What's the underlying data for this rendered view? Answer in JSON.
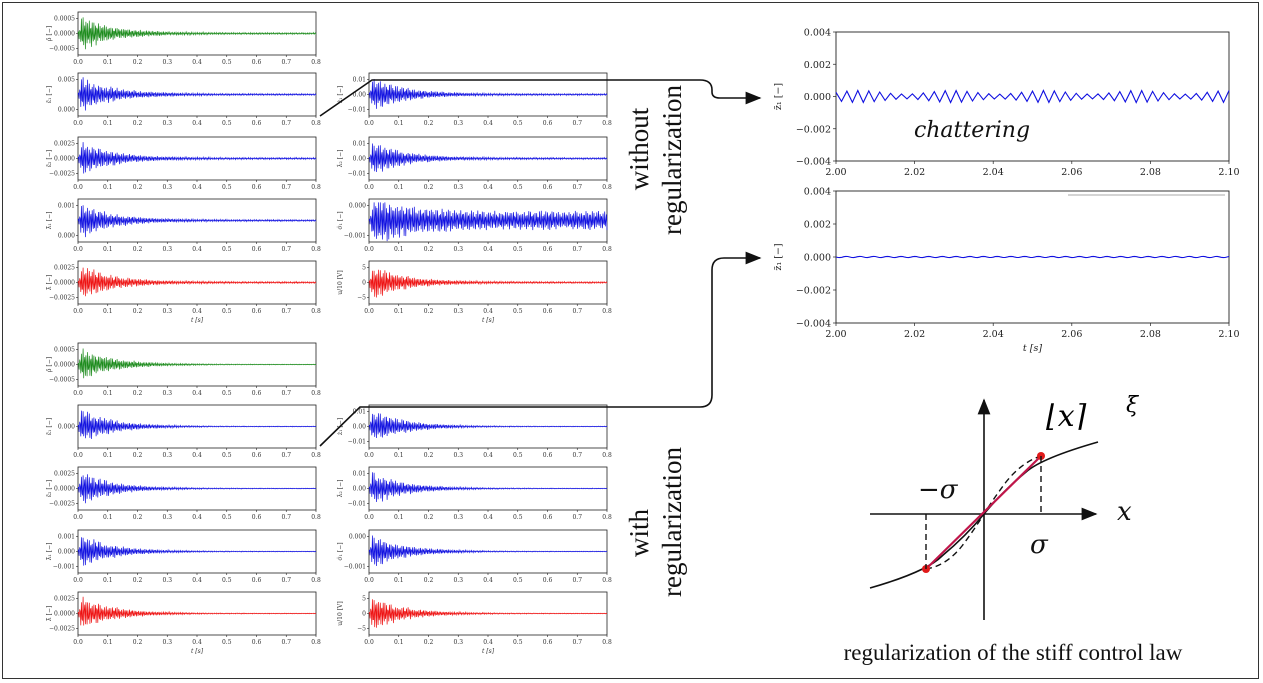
{
  "labels": {
    "without": "without",
    "without_reg": "regularization",
    "with": "with",
    "with_reg": "regularization",
    "chattering": "chattering",
    "caption": "regularization of the stiff control law",
    "x_label": "t [s]"
  },
  "function_plot": {
    "func_label": "⌊x⌉",
    "func_exp": "ξ",
    "axis_x": "x",
    "neg_sigma": "−σ",
    "pos_sigma": "σ"
  },
  "small_panels": {
    "x_ticks": [
      "0.0",
      "0.1",
      "0.2",
      "0.3",
      "0.4",
      "0.5",
      "0.6",
      "0.7",
      "0.8"
    ],
    "colors": {
      "green": "#1a8a1a",
      "blue": "#1010e0",
      "red": "#ee1010"
    },
    "upper_left": [
      {
        "ylabel": "ρ̄ [−]",
        "ticks": [
          "0.0005",
          "0.0000",
          "−0.0005"
        ],
        "color": "green"
      },
      {
        "ylabel": "ε̄₁ [−]",
        "ticks": [
          "0.005",
          "0.000"
        ],
        "color": "blue"
      },
      {
        "ylabel": "ε̄₂ [−]",
        "ticks": [
          "0.0025",
          "0.0000",
          "−0.0025"
        ],
        "color": "blue"
      },
      {
        "ylabel": "λ̃₁ [−]",
        "ticks": [
          "0.001",
          "0.000"
        ],
        "color": "blue"
      },
      {
        "ylabel": "λ̃ [−]",
        "ticks": [
          "0.0025",
          "0.0000",
          "−0.0025"
        ],
        "color": "red"
      }
    ],
    "upper_right": [
      {
        "ylabel": "ż₁ [−]",
        "ticks": [
          "0.01",
          "0.00",
          "−0.01"
        ],
        "color": "blue"
      },
      {
        "ylabel": "λ̇₂ [−]",
        "ticks": [
          "0.01",
          "0.00",
          "−0.01"
        ],
        "color": "blue"
      },
      {
        "ylabel": "σ̇₁ [−]",
        "ticks": [
          "0.000",
          "−0.001"
        ],
        "color": "blue"
      },
      {
        "ylabel": "u/10 [V]",
        "ticks": [
          "5",
          "0",
          "−5"
        ],
        "color": "red"
      }
    ],
    "lower_left": [
      {
        "ylabel": "ρ̄ [−]",
        "ticks": [
          "0.0005",
          "0.0000",
          "−0.0005"
        ],
        "color": "green"
      },
      {
        "ylabel": "ε̄₁ [−]",
        "ticks": [
          "0.000"
        ],
        "color": "blue"
      },
      {
        "ylabel": "ε̄₂ [−]",
        "ticks": [
          "0.0025",
          "0.0000",
          "−0.0025"
        ],
        "color": "blue"
      },
      {
        "ylabel": "λ̃₁ [−]",
        "ticks": [
          "0.001",
          "0.000",
          "−0.001"
        ],
        "color": "blue"
      },
      {
        "ylabel": "λ̃ [−]",
        "ticks": [
          "0.0025",
          "0.0000",
          "−0.0025"
        ],
        "color": "red"
      }
    ],
    "lower_right": [
      {
        "ylabel": "ż₁ [−]",
        "ticks": [
          "0.01",
          "0.00",
          "−0.01"
        ],
        "color": "blue"
      },
      {
        "ylabel": "λ̇₂ [−]",
        "ticks": [
          "0.01",
          "0.00",
          "−0.01"
        ],
        "color": "blue"
      },
      {
        "ylabel": "σ̇₁ [−]",
        "ticks": [
          "0.000",
          "−0.001"
        ],
        "color": "blue"
      },
      {
        "ylabel": "u/10 [V]",
        "ticks": [
          "5",
          "0",
          "−5"
        ],
        "color": "red"
      }
    ]
  },
  "zoom_plots": {
    "x_ticks": [
      "2.00",
      "2.02",
      "2.04",
      "2.06",
      "2.08",
      "2.10"
    ],
    "y_ticks": [
      "0.004",
      "0.002",
      "0.000",
      "−0.002",
      "−0.004"
    ],
    "ylabel": "z̃₁ [−]",
    "color": "#1010e0"
  }
}
